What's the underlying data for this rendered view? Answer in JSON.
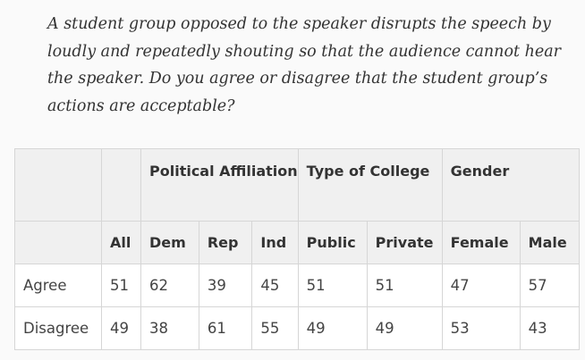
{
  "question": "A student group opposed to the speaker disrupts the speech by loudly and repeatedly shouting so that the audience cannot hear the speaker. Do you agree or disagree that the student group’s actions are acceptable?",
  "table": {
    "groups": {
      "political_affiliation": "Political Affiliation",
      "type_of_college": "Type of College",
      "gender": "Gender"
    },
    "columns": [
      "All",
      "Dem",
      "Rep",
      "Ind",
      "Public",
      "Private",
      "Female",
      "Male"
    ],
    "rows": [
      {
        "label": "Agree",
        "values": [
          "51",
          "62",
          "39",
          "45",
          "51",
          "51",
          "47",
          "57"
        ]
      },
      {
        "label": "Disagree",
        "values": [
          "49",
          "38",
          "61",
          "55",
          "49",
          "49",
          "53",
          "43"
        ]
      }
    ]
  },
  "colors": {
    "header_bg": "#f0f0f0",
    "cell_bg": "#ffffff",
    "border": "#d6d6d6",
    "page_bg": "#fafafa"
  }
}
